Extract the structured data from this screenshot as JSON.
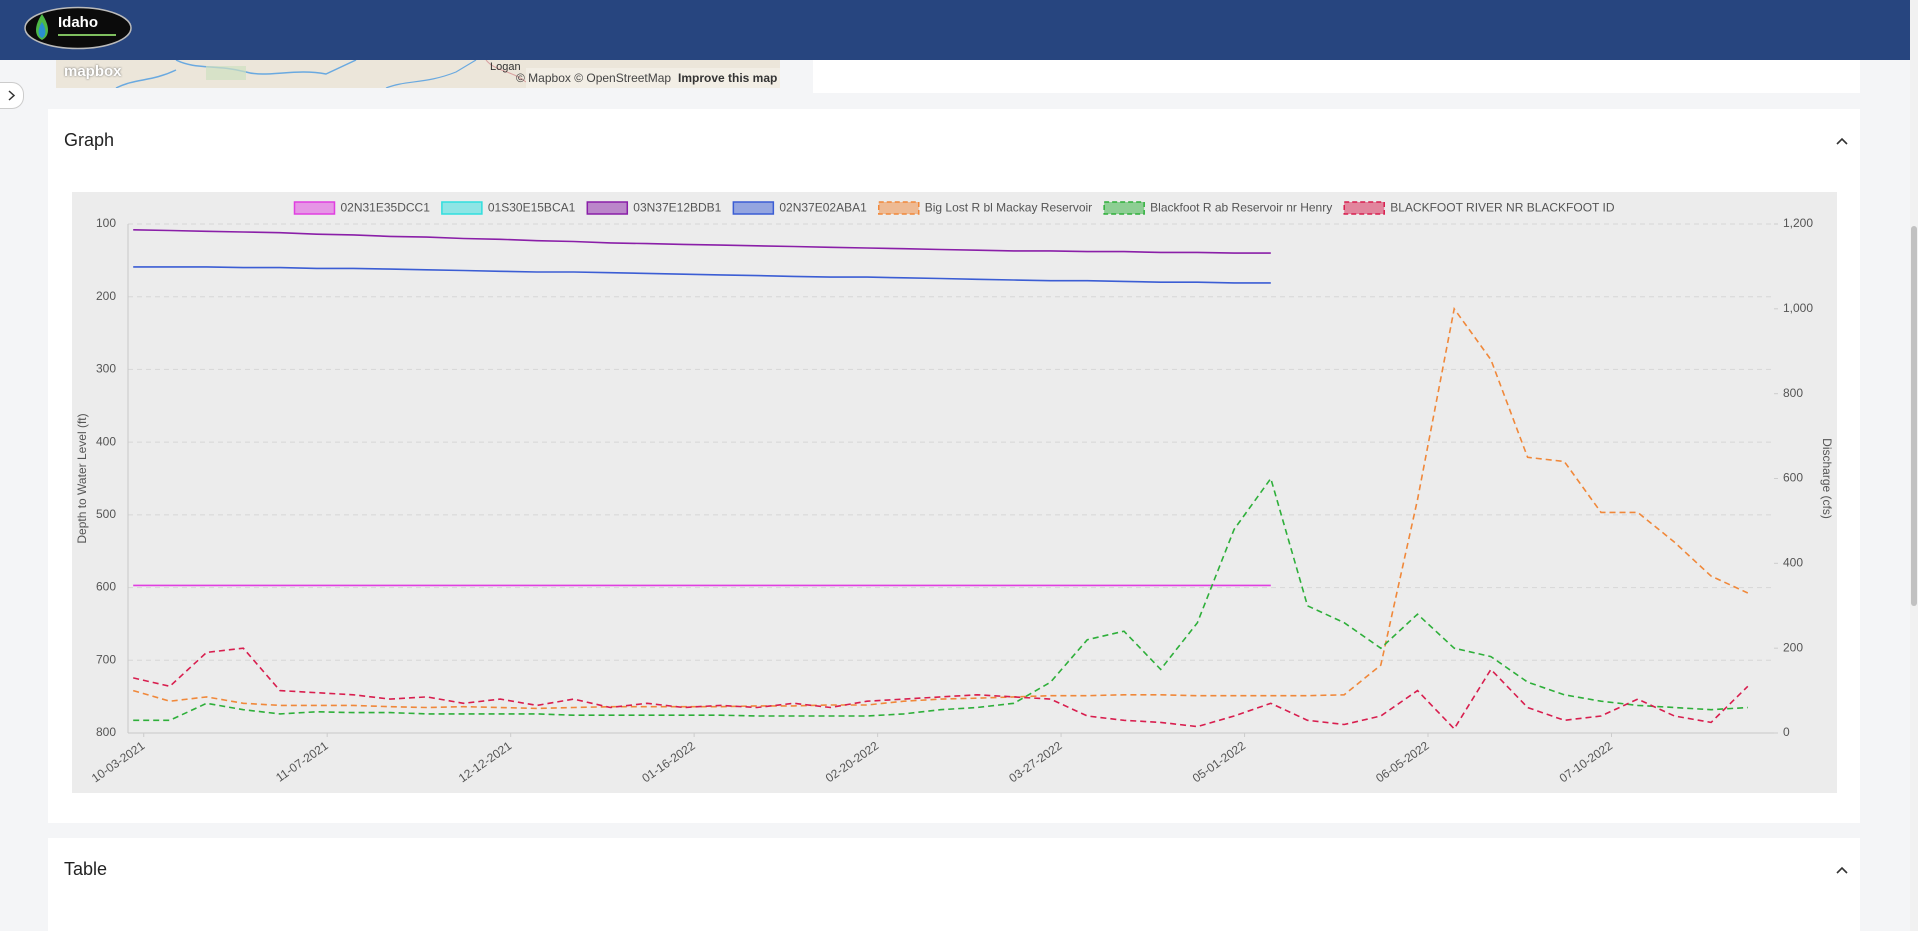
{
  "nav": {
    "logo": "Idaho"
  },
  "map": {
    "logo": "mapbox",
    "place": "Logan",
    "attribution": "© Mapbox © OpenStreetMap",
    "improve": "Improve this map"
  },
  "graph_panel": {
    "title": "Graph"
  },
  "chart_data": {
    "type": "line",
    "y_label": "Depth to Water Level (ft)",
    "y2_label": "Discharge (cfs)",
    "x": [
      "10-01-2021",
      "10-08-2021",
      "10-15-2021",
      "10-22-2021",
      "10-29-2021",
      "11-05-2021",
      "11-12-2021",
      "11-19-2021",
      "11-26-2021",
      "12-03-2021",
      "12-10-2021",
      "12-17-2021",
      "12-24-2021",
      "12-31-2021",
      "01-07-2022",
      "01-14-2022",
      "01-21-2022",
      "01-28-2022",
      "02-04-2022",
      "02-11-2022",
      "02-18-2022",
      "02-25-2022",
      "03-04-2022",
      "03-11-2022",
      "03-18-2022",
      "03-25-2022",
      "04-01-2022",
      "04-08-2022",
      "04-15-2022",
      "04-22-2022",
      "04-29-2022",
      "05-06-2022",
      "05-13-2022",
      "05-20-2022",
      "05-27-2022",
      "06-03-2022",
      "06-10-2022",
      "06-17-2022",
      "06-24-2022",
      "07-01-2022",
      "07-08-2022",
      "07-15-2022",
      "07-22-2022",
      "07-29-2022",
      "08-05-2022"
    ],
    "xlim": [
      "09-30-2021",
      "08-10-2022"
    ],
    "xticks": [
      "10-03-2021",
      "11-07-2021",
      "12-12-2021",
      "01-16-2022",
      "02-20-2022",
      "03-27-2022",
      "05-01-2022",
      "06-05-2022",
      "07-10-2022"
    ],
    "ylim": [
      100,
      800
    ],
    "y_reverse": true,
    "yticks": [
      100,
      200,
      300,
      400,
      500,
      600,
      700,
      800
    ],
    "y2lim": [
      0,
      1200
    ],
    "y2ticks": [
      0,
      200,
      400,
      600,
      800,
      {
        "value": 1000,
        "label": "1,000"
      },
      {
        "value": 1200,
        "label": "1,200"
      }
    ],
    "grid": true,
    "legend": "top",
    "series": [
      {
        "name": "02N31E35DCC1",
        "color": "#e03ee0",
        "dashed": false,
        "values": [
          597,
          597,
          597,
          597,
          597,
          597,
          597,
          597,
          597,
          597,
          597,
          597,
          597,
          597,
          597,
          597,
          597,
          597,
          597,
          597,
          597,
          597,
          597,
          597,
          597,
          597,
          597,
          597,
          597,
          597,
          597,
          597,
          null,
          null,
          null,
          null,
          null,
          null,
          null,
          null,
          null,
          null,
          null,
          null,
          null
        ]
      },
      {
        "name": "01S30E15BCA1",
        "color": "#30dede",
        "dashed": false,
        "values": [
          null,
          null,
          null,
          null,
          null,
          null,
          null,
          null,
          null,
          null,
          null,
          null,
          null,
          null,
          null,
          null,
          null,
          null,
          null,
          null,
          null,
          null,
          null,
          null,
          null,
          null,
          null,
          null,
          null,
          null,
          null,
          null,
          null,
          null,
          null,
          null,
          null,
          null,
          null,
          null,
          null,
          null,
          null,
          null,
          null
        ]
      },
      {
        "name": "03N37E12BDB1",
        "color": "#8a1fa8",
        "dashed": false,
        "values": [
          108,
          109,
          110,
          111,
          112,
          114,
          115,
          117,
          118,
          120,
          121,
          123,
          124,
          126,
          127,
          128,
          129,
          130,
          131,
          132,
          133,
          134,
          135,
          136,
          137,
          137,
          138,
          138,
          139,
          139,
          140,
          140,
          null,
          null,
          null,
          null,
          null,
          null,
          null,
          null,
          null,
          null,
          null,
          null,
          null
        ]
      },
      {
        "name": "02N37E02ABA1",
        "color": "#3b5dd4",
        "dashed": false,
        "values": [
          159,
          159,
          159,
          160,
          160,
          161,
          161,
          162,
          163,
          164,
          165,
          166,
          166,
          167,
          168,
          169,
          170,
          171,
          172,
          173,
          173,
          174,
          175,
          176,
          177,
          178,
          178,
          179,
          180,
          180,
          181,
          181,
          null,
          null,
          null,
          null,
          null,
          null,
          null,
          null,
          null,
          null,
          null,
          null,
          null
        ]
      },
      {
        "name": "Big Lost R bl Mackay Reservoir",
        "color": "#f0883a",
        "dashed": true,
        "axis": "y2",
        "values": [
          100,
          75,
          85,
          70,
          65,
          65,
          65,
          62,
          60,
          62,
          60,
          58,
          60,
          62,
          62,
          62,
          62,
          64,
          64,
          66,
          66,
          75,
          80,
          82,
          85,
          88,
          88,
          90,
          90,
          88,
          88,
          88,
          88,
          90,
          160,
          550,
          1000,
          880,
          650,
          640,
          520,
          520,
          450,
          370,
          330
        ]
      },
      {
        "name": "Blackfoot R ab Reservoir nr Henry",
        "color": "#2eaf3a",
        "dashed": true,
        "axis": "y2",
        "values": [
          30,
          30,
          70,
          55,
          45,
          50,
          48,
          48,
          45,
          45,
          45,
          45,
          42,
          42,
          42,
          42,
          42,
          40,
          40,
          40,
          40,
          45,
          55,
          60,
          70,
          120,
          220,
          240,
          150,
          260,
          480,
          600,
          300,
          260,
          200,
          280,
          200,
          180,
          120,
          90,
          75,
          65,
          60,
          55,
          60
        ]
      },
      {
        "name": "BLACKFOOT RIVER NR BLACKFOOT ID",
        "color": "#d81e4e",
        "dashed": true,
        "axis": "y2",
        "values": [
          130,
          110,
          190,
          200,
          100,
          95,
          90,
          80,
          85,
          70,
          80,
          65,
          80,
          60,
          70,
          60,
          65,
          60,
          70,
          60,
          75,
          80,
          85,
          90,
          85,
          80,
          40,
          30,
          25,
          15,
          40,
          70,
          30,
          20,
          40,
          100,
          10,
          150,
          60,
          30,
          40,
          80,
          40,
          25,
          110
        ]
      }
    ]
  },
  "table_panel": {
    "title": "Table"
  }
}
